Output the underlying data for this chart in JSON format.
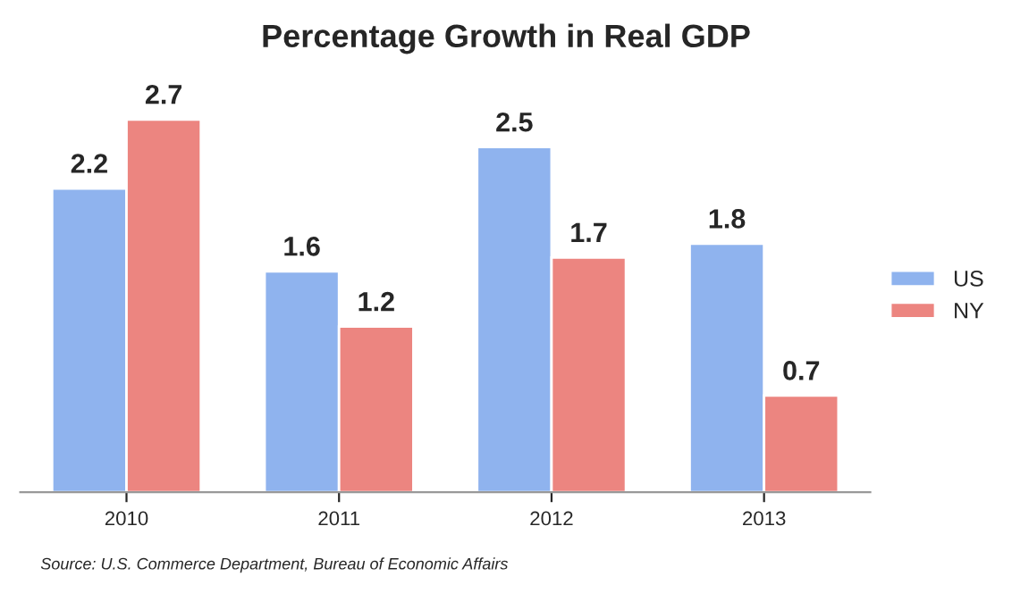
{
  "chart_data": {
    "type": "bar",
    "title": "Percentage Growth in Real GDP",
    "categories": [
      "2010",
      "2011",
      "2012",
      "2013"
    ],
    "series": [
      {
        "name": "US",
        "color": "#8fb3ee",
        "values": [
          2.2,
          1.6,
          2.5,
          1.8
        ]
      },
      {
        "name": "NY",
        "color": "#ec8580",
        "values": [
          2.7,
          1.2,
          1.7,
          0.7
        ]
      }
    ],
    "data_labels": true,
    "legend": "right",
    "grid": false,
    "annotations": [
      "Source: U.S. Commerce Department, Bureau of Economic Affairs"
    ]
  }
}
